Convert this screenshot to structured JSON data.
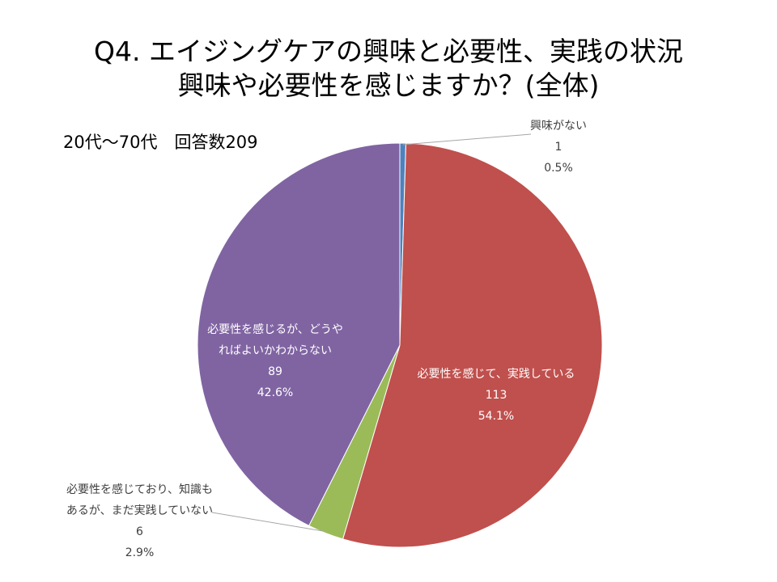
{
  "chart_data": {
    "type": "pie",
    "title_line1": "Q4. エイジングケアの興味と必要性、実践の状況",
    "title_line2": "興味や必要性を感じますか？(全体)",
    "subtitle": "20代～70代　回答数209",
    "slices": [
      {
        "name_lines": [
          "興味がない"
        ],
        "count": "1",
        "percent": "0.5%",
        "value": 1,
        "color": "#4f81bd"
      },
      {
        "name_lines": [
          "必要性を感じて、実践している"
        ],
        "count": "113",
        "percent": "54.1%",
        "value": 113,
        "color": "#c0504d"
      },
      {
        "name_lines": [
          "必要性を感じており、知識も",
          "あるが、まだ実践していない"
        ],
        "count": "6",
        "percent": "2.9%",
        "value": 6,
        "color": "#9bbb59"
      },
      {
        "name_lines": [
          "必要性を感じるが、どうや",
          "ればよいかわからない"
        ],
        "count": "89",
        "percent": "42.6%",
        "value": 89,
        "color": "#8064a2"
      }
    ]
  }
}
